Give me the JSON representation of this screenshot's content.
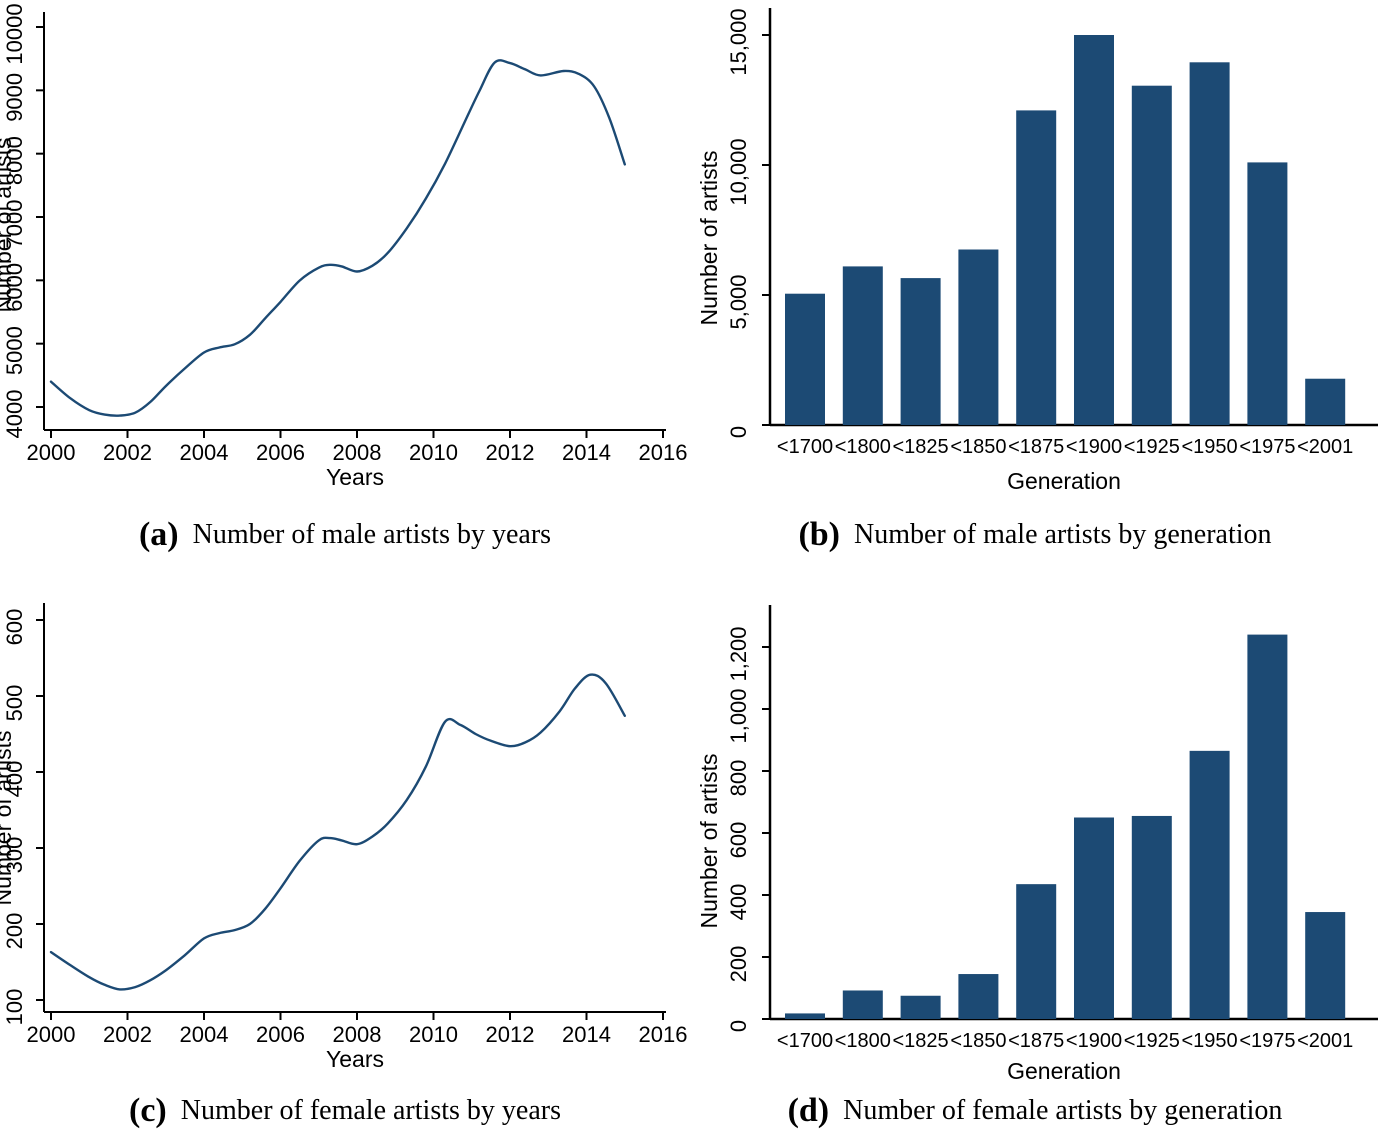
{
  "figure": {
    "background": "#ffffff",
    "accent_color": "#1c4a74",
    "text_color": "#000000"
  },
  "captions": {
    "a": {
      "label": "(a)",
      "text": "Number of male artists by years"
    },
    "b": {
      "label": "(b)",
      "text": "Number of male artists by generation"
    },
    "c": {
      "label": "(c)",
      "text": "Number of female artists by years"
    },
    "d": {
      "label": "(d)",
      "text": "Number of female artists by generation"
    }
  },
  "chart_data": [
    {
      "id": "a",
      "type": "line",
      "title": "Number of male artists by years",
      "xlabel": "Years",
      "ylabel": "Number of artists",
      "xlim": [
        2000,
        2016
      ],
      "ylim": [
        4000,
        10000
      ],
      "xticks": [
        2000,
        2002,
        2004,
        2006,
        2008,
        2010,
        2012,
        2014,
        2016
      ],
      "xtick_labels": [
        "2000",
        "2002",
        "2004",
        "2006",
        "2008",
        "2010",
        "2012",
        "2014",
        "2016"
      ],
      "yticks": [
        4000,
        5000,
        6000,
        7000,
        8000,
        9000,
        10000
      ],
      "ytick_labels": [
        "4000",
        "5000",
        "6000",
        "7000",
        "8000",
        "9000",
        "10000"
      ],
      "grid": false,
      "legend": "none",
      "color": "#1c4a74",
      "x": [
        2000,
        2000.5,
        2001,
        2001.4,
        2001.8,
        2002.2,
        2002.6,
        2003,
        2003.5,
        2004,
        2004.4,
        2004.8,
        2005.2,
        2005.6,
        2006,
        2006.5,
        2007,
        2007.3,
        2007.6,
        2008,
        2008.4,
        2008.8,
        2009.3,
        2009.8,
        2010.3,
        2010.8,
        2011.2,
        2011.6,
        2012,
        2012.4,
        2012.8,
        2013.4,
        2013.8,
        2014.2,
        2014.6,
        2015
      ],
      "y": [
        4400,
        4140,
        3950,
        3880,
        3865,
        3910,
        4080,
        4330,
        4610,
        4860,
        4940,
        4990,
        5140,
        5400,
        5660,
        5995,
        6200,
        6245,
        6220,
        6140,
        6230,
        6430,
        6820,
        7290,
        7840,
        8480,
        8990,
        9440,
        9430,
        9330,
        9235,
        9305,
        9260,
        9060,
        8560,
        7830
      ]
    },
    {
      "id": "b",
      "type": "bar",
      "title": "Number of male artists by generation",
      "xlabel": "Generation",
      "ylabel": "Number of artists",
      "categories": [
        "<1700",
        "<1800",
        "<1825",
        "<1850",
        "<1875",
        "<1900",
        "<1925",
        "<1950",
        "<1975",
        "<2001"
      ],
      "values": [
        5050,
        6100,
        5650,
        6750,
        12100,
        15000,
        13050,
        13950,
        10100,
        1780
      ],
      "yticks": [
        0,
        5000,
        10000,
        15000
      ],
      "ytick_labels": [
        "0",
        "5,000",
        "10,000",
        "15,000"
      ],
      "ylim": [
        0,
        15600
      ],
      "grid": false,
      "legend": "none",
      "color": "#1c4a74"
    },
    {
      "id": "c",
      "type": "line",
      "title": "Number of female artists by years",
      "xlabel": "Years",
      "ylabel": "Number of artists",
      "xlim": [
        2000,
        2016
      ],
      "ylim": [
        100,
        600
      ],
      "xticks": [
        2000,
        2002,
        2004,
        2006,
        2008,
        2010,
        2012,
        2014,
        2016
      ],
      "xtick_labels": [
        "2000",
        "2002",
        "2004",
        "2006",
        "2008",
        "2010",
        "2012",
        "2014",
        "2016"
      ],
      "yticks": [
        100,
        200,
        300,
        400,
        500,
        600
      ],
      "ytick_labels": [
        "100",
        "200",
        "300",
        "400",
        "500",
        "600"
      ],
      "grid": false,
      "legend": "none",
      "color": "#1c4a74",
      "x": [
        2000,
        2000.5,
        2001,
        2001.4,
        2001.8,
        2002.2,
        2002.6,
        2003,
        2003.5,
        2004,
        2004.4,
        2004.8,
        2005.2,
        2005.6,
        2006,
        2006.5,
        2007,
        2007.3,
        2007.6,
        2008,
        2008.4,
        2008.8,
        2009.3,
        2009.8,
        2010.3,
        2010.7,
        2011.1,
        2011.5,
        2012,
        2012.4,
        2012.8,
        2013.3,
        2013.7,
        2014.1,
        2014.5,
        2015
      ],
      "y": [
        163,
        146,
        130,
        120,
        114,
        117,
        126,
        139,
        159,
        181,
        188,
        192,
        200,
        220,
        247,
        283,
        310,
        313,
        310,
        305,
        315,
        332,
        363,
        407,
        466,
        462,
        450,
        441,
        434,
        439,
        452,
        480,
        510,
        528,
        517,
        474
      ]
    },
    {
      "id": "d",
      "type": "bar",
      "title": "Number of female artists by generation",
      "xlabel": "Generation",
      "ylabel": "Number of artists",
      "categories": [
        "<1700",
        "<1800",
        "<1825",
        "<1850",
        "<1875",
        "<1900",
        "<1925",
        "<1950",
        "<1975",
        "<2001"
      ],
      "values": [
        18,
        92,
        75,
        145,
        435,
        650,
        655,
        865,
        1240,
        345
      ],
      "yticks": [
        0,
        200,
        400,
        600,
        800,
        1000,
        1200
      ],
      "ytick_labels": [
        "0",
        "200",
        "400",
        "600",
        "800",
        "1,000",
        "1,200"
      ],
      "ylim": [
        0,
        1290
      ],
      "grid": false,
      "legend": "none",
      "color": "#1c4a74"
    }
  ]
}
